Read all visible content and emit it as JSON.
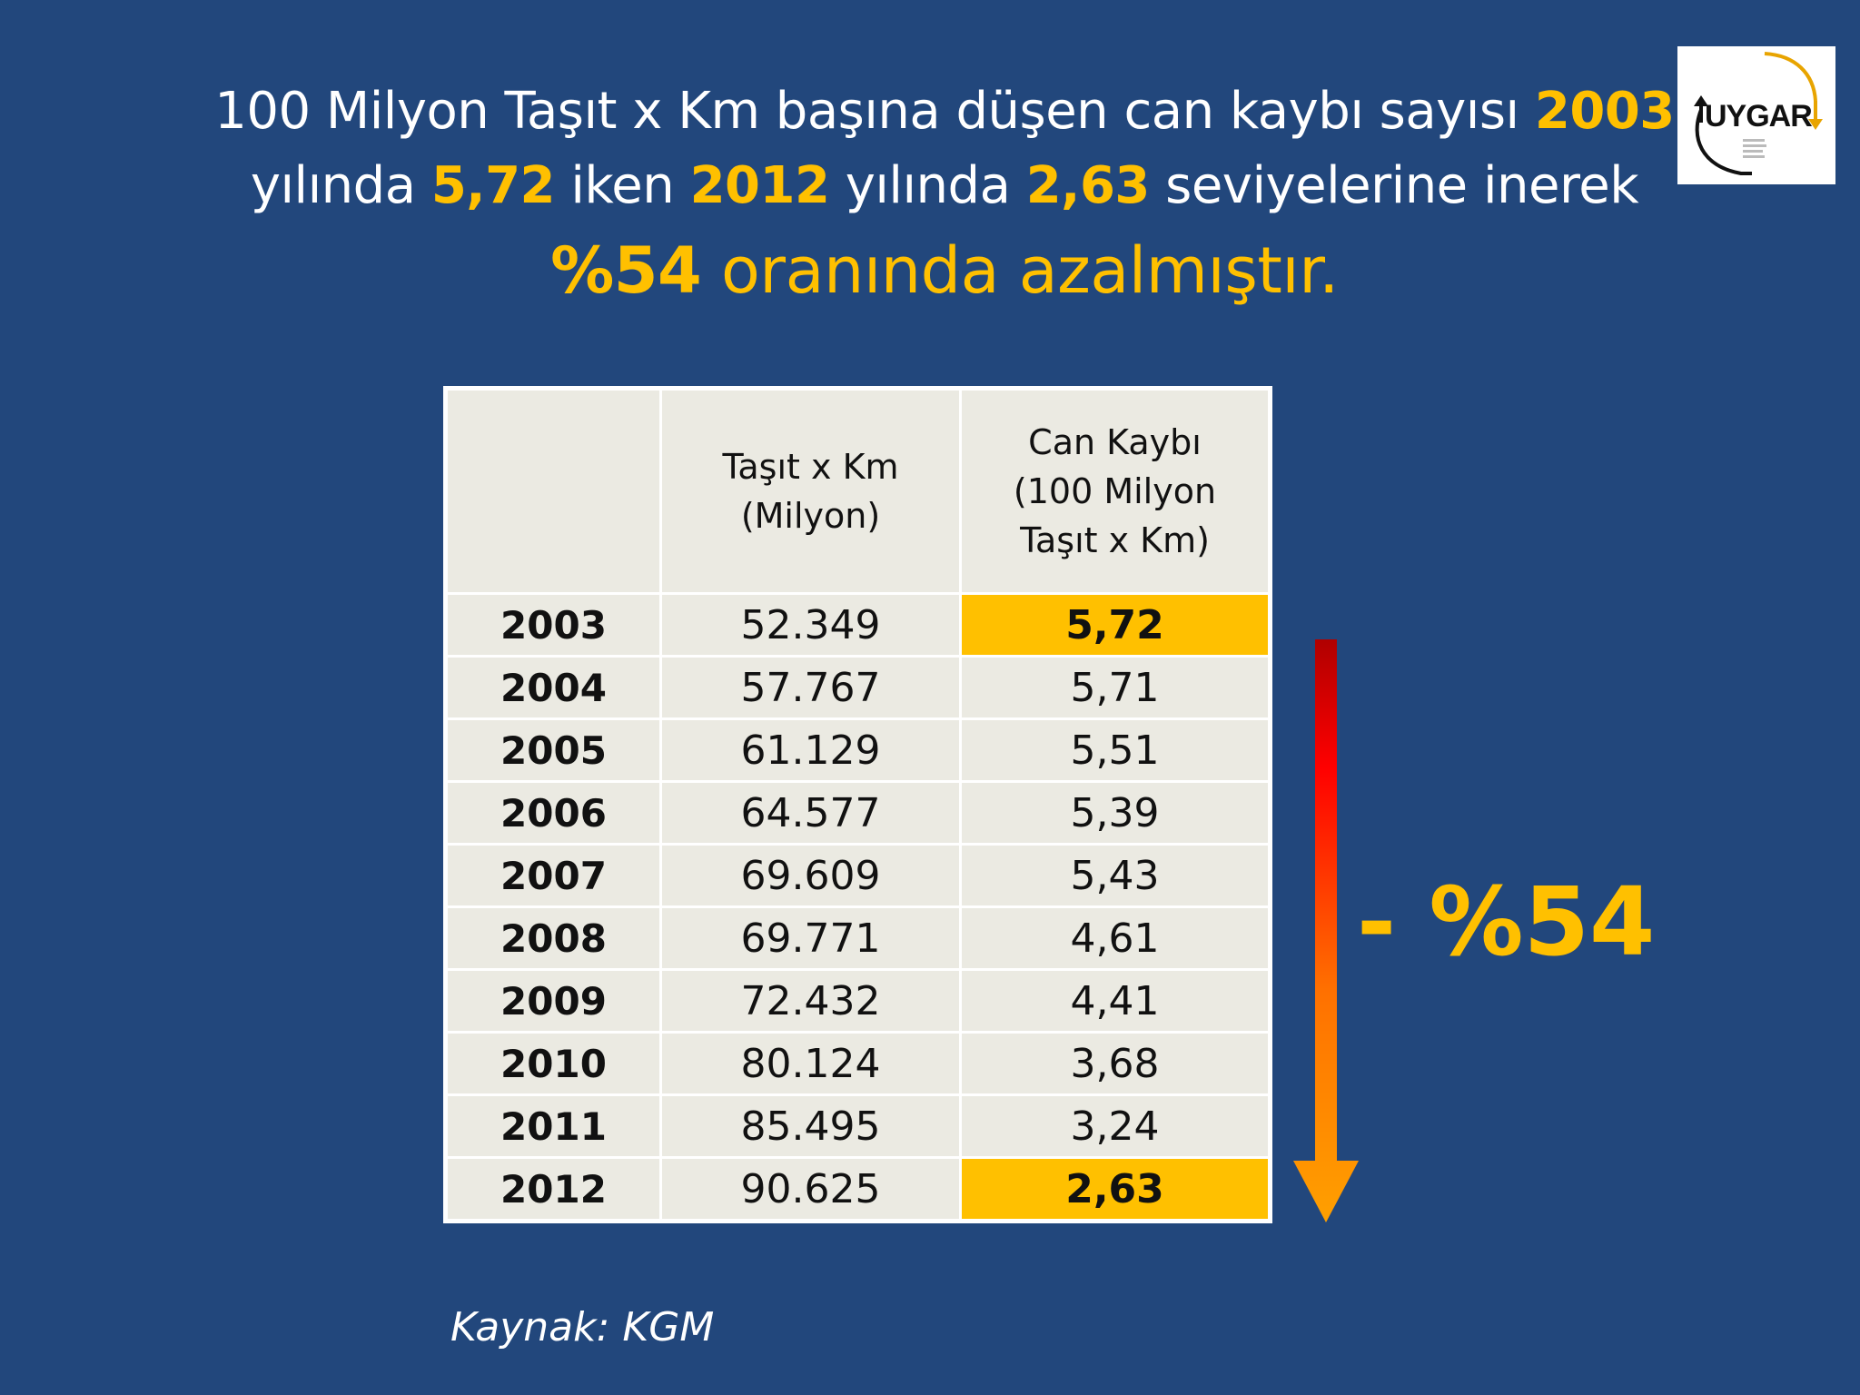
{
  "headline": {
    "line1_text": "100 Milyon Taşıt x Km başına düşen can kaybı sayısı ",
    "line1_year": "2003",
    "line2_prefix": "yılında ",
    "line2_value_start": "5,72",
    "line2_mid": " iken ",
    "line2_year_end": "2012",
    "line2_mid2": " yılında ",
    "line2_value_end": "2,63",
    "line2_suffix": " seviyelerine inerek",
    "line3_percent": "%54",
    "line3_suffix": " oranında azalmıştır."
  },
  "logo": {
    "text": "UYGAR"
  },
  "table": {
    "headers": [
      "",
      "Taşıt x Km\n(Milyon)",
      "Can Kaybı\n(100 Milyon\nTaşıt x Km)"
    ],
    "header_col2_line1": "Taşıt x Km",
    "header_col2_line2": "(Milyon)",
    "header_col3_line1": "Can Kaybı",
    "header_col3_line2": "(100 Milyon",
    "header_col3_line3": "Taşıt x Km)",
    "rows": [
      {
        "year": "2003",
        "vehicle_km": "52.349",
        "fatality_rate": "5,72"
      },
      {
        "year": "2004",
        "vehicle_km": "57.767",
        "fatality_rate": "5,71"
      },
      {
        "year": "2005",
        "vehicle_km": "61.129",
        "fatality_rate": "5,51"
      },
      {
        "year": "2006",
        "vehicle_km": "64.577",
        "fatality_rate": "5,39"
      },
      {
        "year": "2007",
        "vehicle_km": "69.609",
        "fatality_rate": "5,43"
      },
      {
        "year": "2008",
        "vehicle_km": "69.771",
        "fatality_rate": "4,61"
      },
      {
        "year": "2009",
        "vehicle_km": "72.432",
        "fatality_rate": "4,41"
      },
      {
        "year": "2010",
        "vehicle_km": "80.124",
        "fatality_rate": "3,68"
      },
      {
        "year": "2011",
        "vehicle_km": "85.495",
        "fatality_rate": "3,24"
      },
      {
        "year": "2012",
        "vehicle_km": "90.625",
        "fatality_rate": "2,63"
      }
    ]
  },
  "change_label": "- %54",
  "source": "Kaynak: KGM",
  "colors": {
    "background": "#22477c",
    "accent": "#ffc000",
    "table_cell": "#ebeae2",
    "arrow_top": "#c00000",
    "arrow_bottom": "#ffa000"
  },
  "icons": {
    "arrow": "down-gradient-arrow-icon"
  }
}
